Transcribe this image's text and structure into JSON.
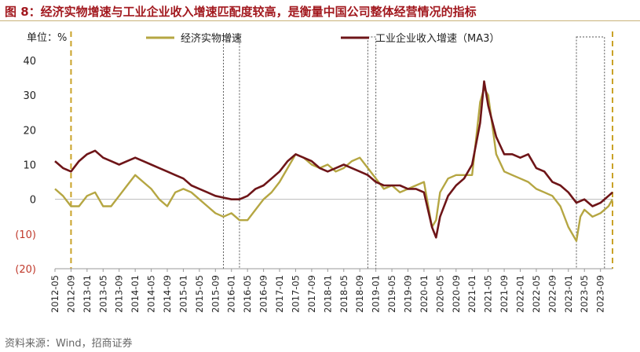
{
  "header": {
    "title": "图 8：经济实物增速与工业企业收入增速匹配度较高，是衡量中国公司整体经营情况的指标"
  },
  "footer": {
    "source": "资料来源：Wind，招商证券"
  },
  "chart_data": {
    "type": "line",
    "title": "图 8：经济实物增速与工业企业收入增速匹配度较高，是衡量中国公司整体经营情况的指标",
    "unit_label": "单位：%",
    "xlabel": "",
    "ylabel": "",
    "ylim": [
      -20,
      40
    ],
    "yticks": [
      40,
      30,
      20,
      10,
      0,
      -10,
      -20
    ],
    "ytick_labels": [
      "40",
      "30",
      "20",
      "10",
      "0",
      "(10)",
      "(20)"
    ],
    "x_tick_labels": [
      "2012-05",
      "2012-09",
      "2013-01",
      "2013-05",
      "2013-09",
      "2014-01",
      "2014-05",
      "2014-09",
      "2015-01",
      "2015-05",
      "2015-09",
      "2016-01",
      "2016-05",
      "2016-09",
      "2017-01",
      "2017-05",
      "2017-09",
      "2018-01",
      "2018-05",
      "2018-09",
      "2019-01",
      "2019-05",
      "2019-09",
      "2020-01",
      "2020-05",
      "2020-09",
      "2021-01",
      "2021-05",
      "2021-09",
      "2022-01",
      "2022-05",
      "2022-09",
      "2023-01",
      "2023-05",
      "2023-09"
    ],
    "x_range": [
      "2012-05",
      "2023-12"
    ],
    "legend_position": "top",
    "series": [
      {
        "name": "经济实物增速",
        "color": "#b5a642",
        "points": [
          [
            "2012-05",
            3
          ],
          [
            "2012-07",
            1
          ],
          [
            "2012-09",
            -2
          ],
          [
            "2012-11",
            -2
          ],
          [
            "2013-01",
            1
          ],
          [
            "2013-03",
            2
          ],
          [
            "2013-05",
            -2
          ],
          [
            "2013-07",
            -2
          ],
          [
            "2013-09",
            1
          ],
          [
            "2013-11",
            4
          ],
          [
            "2014-01",
            7
          ],
          [
            "2014-03",
            5
          ],
          [
            "2014-05",
            3
          ],
          [
            "2014-07",
            0
          ],
          [
            "2014-09",
            -2
          ],
          [
            "2014-11",
            2
          ],
          [
            "2015-01",
            3
          ],
          [
            "2015-03",
            2
          ],
          [
            "2015-05",
            0
          ],
          [
            "2015-07",
            -2
          ],
          [
            "2015-09",
            -4
          ],
          [
            "2015-11",
            -5
          ],
          [
            "2016-01",
            -4
          ],
          [
            "2016-03",
            -6
          ],
          [
            "2016-05",
            -6
          ],
          [
            "2016-07",
            -3
          ],
          [
            "2016-09",
            0
          ],
          [
            "2016-11",
            2
          ],
          [
            "2017-01",
            5
          ],
          [
            "2017-03",
            9
          ],
          [
            "2017-05",
            13
          ],
          [
            "2017-07",
            12
          ],
          [
            "2017-09",
            10
          ],
          [
            "2017-11",
            9
          ],
          [
            "2018-01",
            10
          ],
          [
            "2018-03",
            8
          ],
          [
            "2018-05",
            9
          ],
          [
            "2018-07",
            11
          ],
          [
            "2018-09",
            12
          ],
          [
            "2018-11",
            9
          ],
          [
            "2019-01",
            6
          ],
          [
            "2019-03",
            3
          ],
          [
            "2019-05",
            4
          ],
          [
            "2019-07",
            2
          ],
          [
            "2019-09",
            3
          ],
          [
            "2019-11",
            4
          ],
          [
            "2020-01",
            5
          ],
          [
            "2020-03",
            -8
          ],
          [
            "2020-04",
            -6
          ],
          [
            "2020-05",
            2
          ],
          [
            "2020-07",
            6
          ],
          [
            "2020-09",
            7
          ],
          [
            "2020-11",
            7
          ],
          [
            "2021-01",
            7
          ],
          [
            "2021-03",
            28
          ],
          [
            "2021-04",
            32
          ],
          [
            "2021-05",
            30
          ],
          [
            "2021-07",
            13
          ],
          [
            "2021-09",
            8
          ],
          [
            "2021-11",
            7
          ],
          [
            "2022-01",
            6
          ],
          [
            "2022-03",
            5
          ],
          [
            "2022-05",
            3
          ],
          [
            "2022-07",
            2
          ],
          [
            "2022-09",
            1
          ],
          [
            "2022-11",
            -2
          ],
          [
            "2023-01",
            -8
          ],
          [
            "2023-03",
            -12
          ],
          [
            "2023-04",
            -5
          ],
          [
            "2023-05",
            -3
          ],
          [
            "2023-07",
            -5
          ],
          [
            "2023-09",
            -4
          ],
          [
            "2023-11",
            -2
          ],
          [
            "2023-12",
            0
          ]
        ]
      },
      {
        "name": "工业企业收入增速（MA3）",
        "color": "#6e1518",
        "points": [
          [
            "2012-05",
            11
          ],
          [
            "2012-07",
            9
          ],
          [
            "2012-09",
            8
          ],
          [
            "2012-11",
            11
          ],
          [
            "2013-01",
            13
          ],
          [
            "2013-03",
            14
          ],
          [
            "2013-05",
            12
          ],
          [
            "2013-07",
            11
          ],
          [
            "2013-09",
            10
          ],
          [
            "2013-11",
            11
          ],
          [
            "2014-01",
            12
          ],
          [
            "2014-03",
            11
          ],
          [
            "2014-05",
            10
          ],
          [
            "2014-07",
            9
          ],
          [
            "2014-09",
            8
          ],
          [
            "2014-11",
            7
          ],
          [
            "2015-01",
            6
          ],
          [
            "2015-03",
            4
          ],
          [
            "2015-05",
            3
          ],
          [
            "2015-07",
            2
          ],
          [
            "2015-09",
            1
          ],
          [
            "2015-11",
            0.5
          ],
          [
            "2016-01",
            0
          ],
          [
            "2016-03",
            0
          ],
          [
            "2016-05",
            1
          ],
          [
            "2016-07",
            3
          ],
          [
            "2016-09",
            4
          ],
          [
            "2016-11",
            6
          ],
          [
            "2017-01",
            8
          ],
          [
            "2017-03",
            11
          ],
          [
            "2017-05",
            13
          ],
          [
            "2017-07",
            12
          ],
          [
            "2017-09",
            11
          ],
          [
            "2017-11",
            9
          ],
          [
            "2018-01",
            8
          ],
          [
            "2018-03",
            9
          ],
          [
            "2018-05",
            10
          ],
          [
            "2018-07",
            9
          ],
          [
            "2018-09",
            8
          ],
          [
            "2018-11",
            7
          ],
          [
            "2019-01",
            5
          ],
          [
            "2019-03",
            4
          ],
          [
            "2019-05",
            4
          ],
          [
            "2019-07",
            4
          ],
          [
            "2019-09",
            3
          ],
          [
            "2019-11",
            3
          ],
          [
            "2020-01",
            2
          ],
          [
            "2020-03",
            -8
          ],
          [
            "2020-04",
            -11
          ],
          [
            "2020-05",
            -5
          ],
          [
            "2020-07",
            1
          ],
          [
            "2020-09",
            4
          ],
          [
            "2020-11",
            6
          ],
          [
            "2021-01",
            10
          ],
          [
            "2021-03",
            22
          ],
          [
            "2021-04",
            34
          ],
          [
            "2021-05",
            27
          ],
          [
            "2021-07",
            18
          ],
          [
            "2021-09",
            13
          ],
          [
            "2021-11",
            13
          ],
          [
            "2022-01",
            12
          ],
          [
            "2022-03",
            13
          ],
          [
            "2022-05",
            9
          ],
          [
            "2022-07",
            8
          ],
          [
            "2022-09",
            5
          ],
          [
            "2022-11",
            4
          ],
          [
            "2023-01",
            2
          ],
          [
            "2023-03",
            -1
          ],
          [
            "2023-05",
            0
          ],
          [
            "2023-07",
            -2
          ],
          [
            "2023-09",
            -1
          ],
          [
            "2023-11",
            1
          ],
          [
            "2023-12",
            2
          ]
        ]
      }
    ],
    "vertical_markers": [
      "2012-09",
      "2023-12"
    ],
    "highlight_boxes": [
      [
        "2015-11",
        "2016-03"
      ],
      [
        "2018-11",
        "2019-01"
      ],
      [
        "2023-03",
        "2023-10"
      ]
    ]
  }
}
